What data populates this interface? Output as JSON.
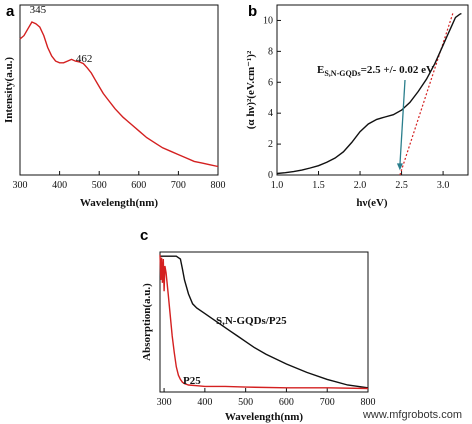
{
  "colors": {
    "red": "#d42020",
    "black": "#111111",
    "dotted": "#d42020",
    "arrow": "#2a7e8c"
  },
  "watermark": "www.mfgrobots.com",
  "chart_data": [
    {
      "panel": "a",
      "type": "line",
      "xlabel": "Wavelength(nm)",
      "ylabel": "Intensity(a.u.)",
      "xlim": [
        300,
        800
      ],
      "ylim": [
        0,
        1
      ],
      "xticks": [
        300,
        400,
        500,
        600,
        700,
        800
      ],
      "yticks_shown": false,
      "annotations": [
        {
          "text": "345",
          "x": 345,
          "y": 0.93
        },
        {
          "text": "462",
          "x": 462,
          "y": 0.64
        }
      ],
      "series": [
        {
          "color": "#d42020",
          "x": [
            300,
            310,
            320,
            330,
            340,
            345,
            350,
            360,
            370,
            380,
            390,
            400,
            410,
            420,
            430,
            440,
            450,
            460,
            470,
            480,
            490,
            500,
            510,
            520,
            540,
            560,
            580,
            600,
            620,
            640,
            660,
            680,
            700,
            720,
            740,
            760,
            780,
            800
          ],
          "y": [
            0.8,
            0.82,
            0.86,
            0.9,
            0.89,
            0.88,
            0.87,
            0.82,
            0.75,
            0.7,
            0.67,
            0.66,
            0.66,
            0.67,
            0.68,
            0.67,
            0.665,
            0.655,
            0.63,
            0.6,
            0.56,
            0.52,
            0.48,
            0.45,
            0.39,
            0.34,
            0.3,
            0.26,
            0.22,
            0.19,
            0.16,
            0.14,
            0.12,
            0.1,
            0.08,
            0.07,
            0.06,
            0.05
          ]
        }
      ]
    },
    {
      "panel": "b",
      "type": "line",
      "xlabel": "hν(eV)",
      "ylabel": "(α hν)²(eV.cm⁻¹)²",
      "xlim": [
        1.0,
        3.3
      ],
      "ylim": [
        0,
        11
      ],
      "xticks": [
        1.0,
        1.5,
        2.0,
        2.5,
        3.0
      ],
      "yticks": [
        0,
        2,
        4,
        6,
        8,
        10
      ],
      "annotations": [
        {
          "text": "E",
          "sub": "S,N-GQDs",
          "tail": "=2.5 +/- 0.02 eV"
        }
      ],
      "arrow_to": {
        "x": 2.48,
        "y": 0.3
      },
      "tangent_line": {
        "x": [
          2.48,
          3.12
        ],
        "y": [
          0,
          10.5
        ]
      },
      "series": [
        {
          "color": "#111111",
          "x": [
            1.0,
            1.1,
            1.2,
            1.3,
            1.4,
            1.5,
            1.6,
            1.7,
            1.8,
            1.9,
            2.0,
            2.1,
            2.2,
            2.3,
            2.4,
            2.5,
            2.6,
            2.7,
            2.8,
            2.9,
            3.0,
            3.05,
            3.1,
            3.15,
            3.2,
            3.22
          ],
          "y": [
            0.1,
            0.15,
            0.22,
            0.32,
            0.45,
            0.6,
            0.82,
            1.1,
            1.5,
            2.1,
            2.8,
            3.3,
            3.6,
            3.75,
            3.9,
            4.2,
            4.7,
            5.4,
            6.2,
            7.2,
            8.4,
            9.0,
            9.6,
            10.2,
            10.4,
            10.45
          ]
        }
      ]
    },
    {
      "panel": "c",
      "type": "line",
      "xlabel": "Wavelength(nm)",
      "ylabel": "Absorption(a.u.)",
      "xlim": [
        290,
        800
      ],
      "ylim": [
        0,
        1
      ],
      "xticks": [
        300,
        400,
        500,
        600,
        700,
        800
      ],
      "yticks_shown": false,
      "series": [
        {
          "name": "S,N-GQDs/P25",
          "color": "#111111",
          "x": [
            290,
            295,
            300,
            310,
            320,
            330,
            340,
            345,
            350,
            360,
            370,
            380,
            400,
            420,
            440,
            460,
            480,
            500,
            520,
            550,
            600,
            650,
            700,
            750,
            800
          ],
          "y": [
            0.97,
            0.97,
            0.97,
            0.97,
            0.97,
            0.97,
            0.95,
            0.88,
            0.8,
            0.7,
            0.63,
            0.6,
            0.56,
            0.52,
            0.48,
            0.44,
            0.4,
            0.36,
            0.32,
            0.27,
            0.2,
            0.14,
            0.09,
            0.05,
            0.03
          ]
        },
        {
          "name": "P25",
          "color": "#d42020",
          "x": [
            290,
            292,
            294,
            296,
            298,
            300,
            302,
            305,
            310,
            315,
            320,
            325,
            330,
            335,
            340,
            345,
            350,
            360,
            380,
            400,
            450,
            500,
            600,
            700,
            800
          ],
          "y": [
            0.98,
            0.8,
            0.96,
            0.78,
            0.95,
            0.72,
            0.9,
            0.85,
            0.7,
            0.55,
            0.4,
            0.28,
            0.18,
            0.12,
            0.09,
            0.07,
            0.06,
            0.05,
            0.045,
            0.04,
            0.04,
            0.035,
            0.03,
            0.03,
            0.025
          ]
        }
      ]
    }
  ]
}
